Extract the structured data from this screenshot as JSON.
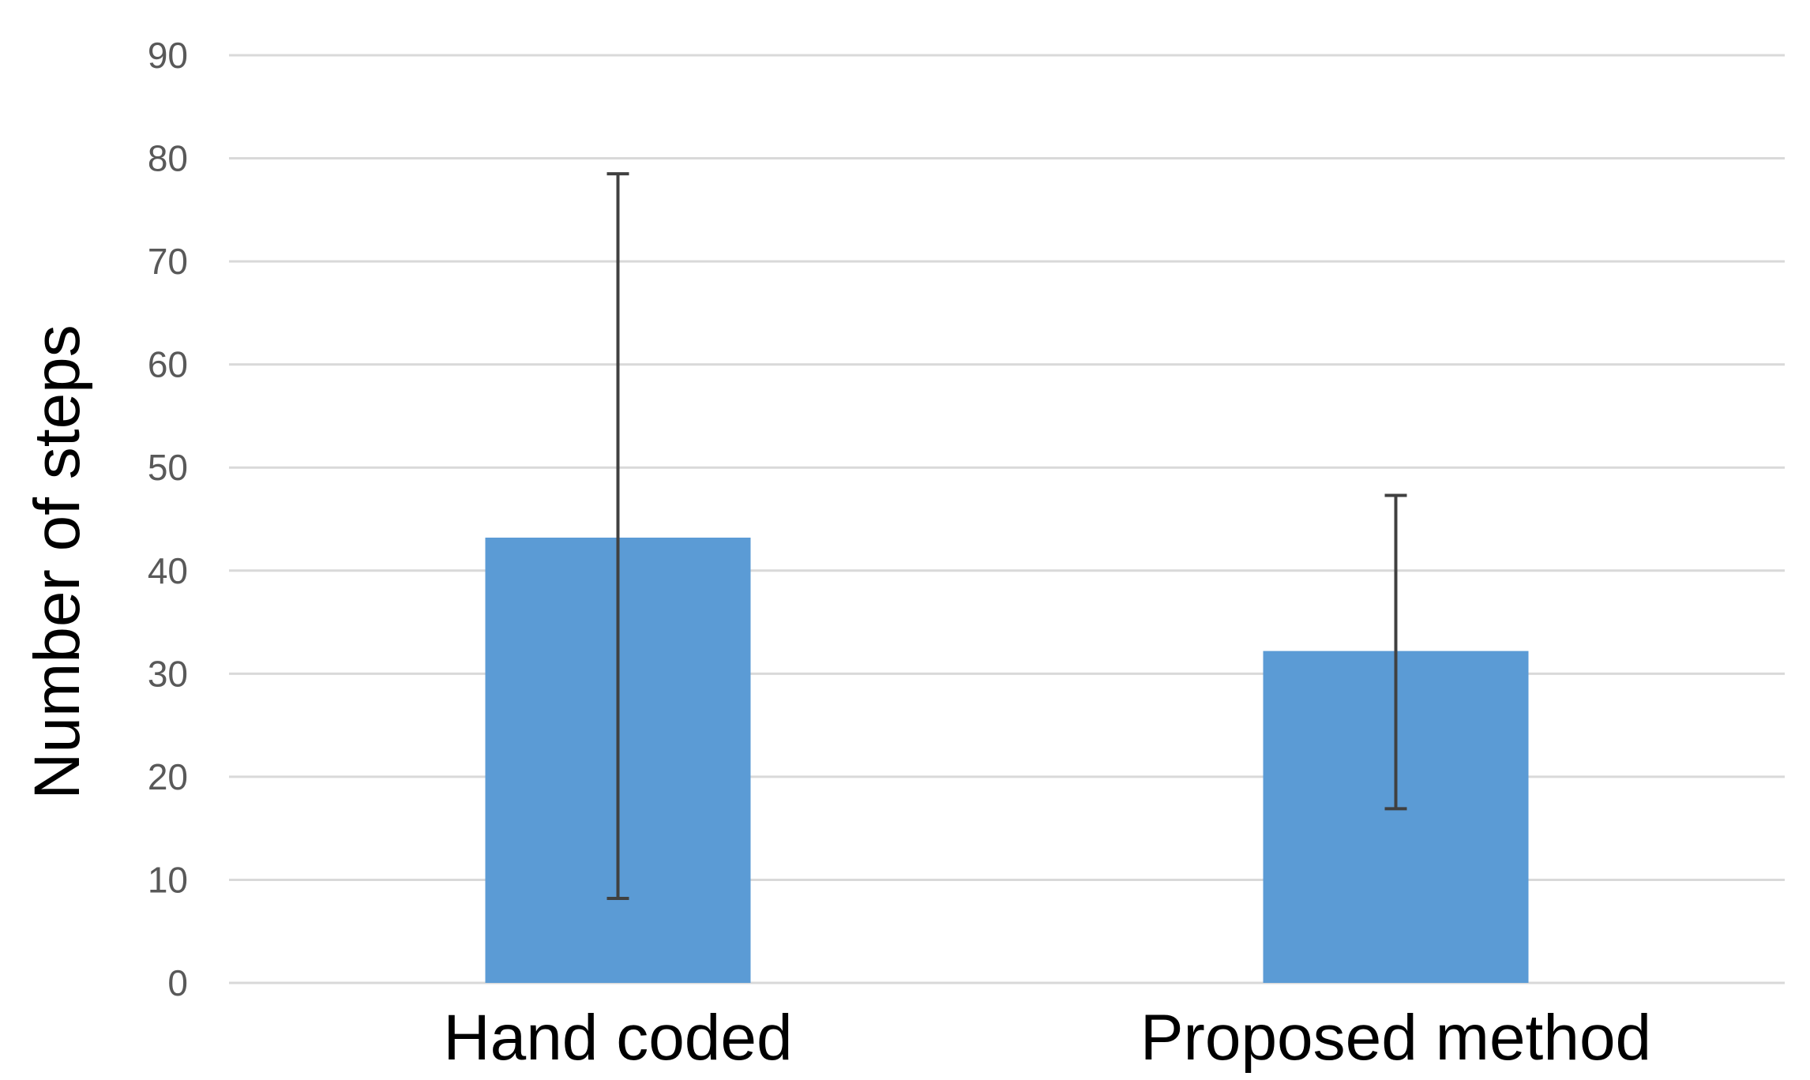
{
  "chart_data": {
    "type": "bar",
    "categories": [
      "Hand coded",
      "Proposed method"
    ],
    "values": [
      43.2,
      32.2
    ],
    "error_bars": {
      "upper": [
        78.5,
        47.3
      ],
      "lower": [
        8.2,
        16.9
      ]
    },
    "title": "",
    "xlabel": "",
    "ylabel": "Number of steps",
    "ylim": [
      0,
      90
    ],
    "yticks": [
      0,
      10,
      20,
      30,
      40,
      50,
      60,
      70,
      80,
      90
    ],
    "grid": true,
    "legend": "none",
    "colors": {
      "bar": "#5b9bd5",
      "grid": "#d9d9d9",
      "error_bar": "#404040"
    }
  }
}
